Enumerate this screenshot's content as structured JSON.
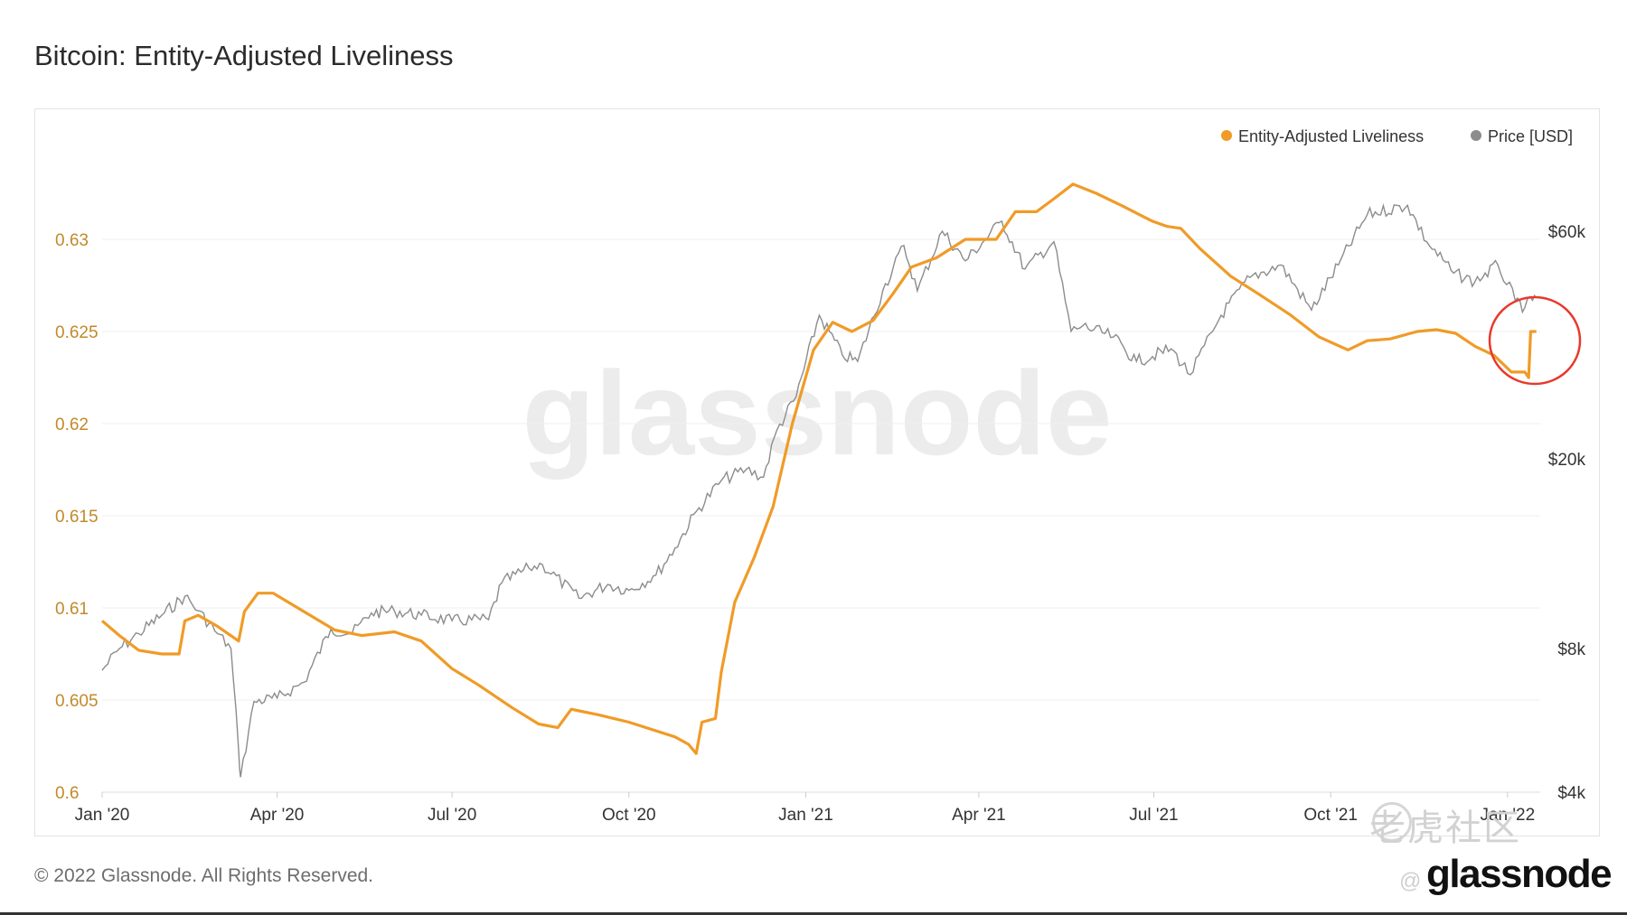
{
  "title": "Bitcoin: Entity-Adjusted Liveliness",
  "footer": "© 2022 Glassnode. All Rights Reserved.",
  "brand": "glassnode",
  "watermark_text": "glassnode",
  "overlay": {
    "site": "老虎社区",
    "handle": "@"
  },
  "colors": {
    "liveliness": "#f09b27",
    "price": "#8c8c8c",
    "highlight": "#e8392b",
    "grid": "#efefef",
    "left_axis_text": "#c2892a"
  },
  "chart_data": {
    "type": "line",
    "x_range": [
      "2020-01-01",
      "2022-01-18"
    ],
    "x_ticks": [
      {
        "date": "2020-01-01",
        "label": "Jan '20"
      },
      {
        "date": "2020-04-01",
        "label": "Apr '20"
      },
      {
        "date": "2020-07-01",
        "label": "Jul '20"
      },
      {
        "date": "2020-10-01",
        "label": "Oct '20"
      },
      {
        "date": "2021-01-01",
        "label": "Jan '21"
      },
      {
        "date": "2021-04-01",
        "label": "Apr '21"
      },
      {
        "date": "2021-07-01",
        "label": "Jul '21"
      },
      {
        "date": "2021-10-01",
        "label": "Oct '21"
      },
      {
        "date": "2022-01-01",
        "label": "Jan '22"
      }
    ],
    "y_left": {
      "ylim": [
        0.6,
        0.635
      ],
      "ticks": [
        0.6,
        0.605,
        0.61,
        0.615,
        0.62,
        0.625,
        0.63
      ],
      "tick_labels": [
        "0.6",
        "0.605",
        "0.61",
        "0.615",
        "0.62",
        "0.625",
        "0.63"
      ]
    },
    "y_right": {
      "scale": "log",
      "ylim": [
        4000,
        90000
      ],
      "ticks": [
        4000,
        8000,
        20000,
        60000
      ],
      "tick_labels": [
        "$4k",
        "$8k",
        "$20k",
        "$60k"
      ]
    },
    "legend_position": "top-right",
    "grid": true,
    "annotation": "red circle around the Jan '22 spike",
    "series": [
      {
        "name": "Entity-Adjusted Liveliness",
        "axis": "left",
        "points": [
          [
            "2020-01-01",
            0.6093
          ],
          [
            "2020-01-10",
            0.6085
          ],
          [
            "2020-01-20",
            0.6077
          ],
          [
            "2020-02-01",
            0.6075
          ],
          [
            "2020-02-10",
            0.6075
          ],
          [
            "2020-02-13",
            0.6093
          ],
          [
            "2020-02-20",
            0.6096
          ],
          [
            "2020-03-01",
            0.609
          ],
          [
            "2020-03-12",
            0.6082
          ],
          [
            "2020-03-15",
            0.6098
          ],
          [
            "2020-03-22",
            0.6108
          ],
          [
            "2020-03-30",
            0.6108
          ],
          [
            "2020-04-15",
            0.6098
          ],
          [
            "2020-05-01",
            0.6088
          ],
          [
            "2020-05-15",
            0.6085
          ],
          [
            "2020-06-01",
            0.6087
          ],
          [
            "2020-06-15",
            0.6082
          ],
          [
            "2020-07-01",
            0.6067
          ],
          [
            "2020-07-15",
            0.6058
          ],
          [
            "2020-08-01",
            0.6046
          ],
          [
            "2020-08-15",
            0.6037
          ],
          [
            "2020-08-25",
            0.6035
          ],
          [
            "2020-09-01",
            0.6045
          ],
          [
            "2020-09-15",
            0.6042
          ],
          [
            "2020-10-01",
            0.6038
          ],
          [
            "2020-10-10",
            0.6035
          ],
          [
            "2020-10-25",
            0.603
          ],
          [
            "2020-11-01",
            0.6026
          ],
          [
            "2020-11-05",
            0.6021
          ],
          [
            "2020-11-08",
            0.6038
          ],
          [
            "2020-11-15",
            0.604
          ],
          [
            "2020-11-18",
            0.6065
          ],
          [
            "2020-11-25",
            0.6103
          ],
          [
            "2020-12-05",
            0.6127
          ],
          [
            "2020-12-15",
            0.6155
          ],
          [
            "2020-12-25",
            0.62
          ],
          [
            "2021-01-05",
            0.624
          ],
          [
            "2021-01-15",
            0.6255
          ],
          [
            "2021-01-25",
            0.625
          ],
          [
            "2021-02-05",
            0.6256
          ],
          [
            "2021-02-15",
            0.627
          ],
          [
            "2021-02-25",
            0.6285
          ],
          [
            "2021-03-10",
            0.629
          ],
          [
            "2021-03-25",
            0.63
          ],
          [
            "2021-04-10",
            0.63
          ],
          [
            "2021-04-20",
            0.6315
          ],
          [
            "2021-05-01",
            0.6315
          ],
          [
            "2021-05-10",
            0.6322
          ],
          [
            "2021-05-20",
            0.633
          ],
          [
            "2021-06-01",
            0.6325
          ],
          [
            "2021-06-15",
            0.6318
          ],
          [
            "2021-06-30",
            0.631
          ],
          [
            "2021-07-08",
            0.6307
          ],
          [
            "2021-07-15",
            0.6306
          ],
          [
            "2021-07-25",
            0.6295
          ],
          [
            "2021-08-10",
            0.628
          ],
          [
            "2021-08-25",
            0.627
          ],
          [
            "2021-09-10",
            0.6259
          ],
          [
            "2021-09-25",
            0.6247
          ],
          [
            "2021-10-10",
            0.624
          ],
          [
            "2021-10-20",
            0.6245
          ],
          [
            "2021-11-01",
            0.6246
          ],
          [
            "2021-11-15",
            0.625
          ],
          [
            "2021-11-25",
            0.6251
          ],
          [
            "2021-12-05",
            0.6249
          ],
          [
            "2021-12-15",
            0.6242
          ],
          [
            "2021-12-25",
            0.6237
          ],
          [
            "2022-01-03",
            0.6228
          ],
          [
            "2022-01-10",
            0.6228
          ],
          [
            "2022-01-12",
            0.6225
          ],
          [
            "2022-01-13",
            0.625
          ],
          [
            "2022-01-16",
            0.625
          ]
        ]
      },
      {
        "name": "Price [USD]",
        "axis": "right",
        "points": [
          [
            "2020-01-01",
            7200
          ],
          [
            "2020-01-10",
            8000
          ],
          [
            "2020-01-20",
            8600
          ],
          [
            "2020-02-01",
            9400
          ],
          [
            "2020-02-13",
            10300
          ],
          [
            "2020-02-20",
            9600
          ],
          [
            "2020-03-01",
            8600
          ],
          [
            "2020-03-08",
            8000
          ],
          [
            "2020-03-12",
            4900
          ],
          [
            "2020-03-13",
            4300
          ],
          [
            "2020-03-20",
            6200
          ],
          [
            "2020-04-01",
            6300
          ],
          [
            "2020-04-15",
            6800
          ],
          [
            "2020-04-29",
            8800
          ],
          [
            "2020-05-10",
            8600
          ],
          [
            "2020-05-20",
            9500
          ],
          [
            "2020-06-01",
            9600
          ],
          [
            "2020-06-15",
            9400
          ],
          [
            "2020-07-01",
            9150
          ],
          [
            "2020-07-20",
            9200
          ],
          [
            "2020-07-27",
            11000
          ],
          [
            "2020-08-10",
            11800
          ],
          [
            "2020-08-17",
            12000
          ],
          [
            "2020-09-05",
            10200
          ],
          [
            "2020-09-20",
            10900
          ],
          [
            "2020-10-01",
            10600
          ],
          [
            "2020-10-15",
            11400
          ],
          [
            "2020-10-25",
            13000
          ],
          [
            "2020-11-05",
            15500
          ],
          [
            "2020-11-18",
            18000
          ],
          [
            "2020-12-01",
            19000
          ],
          [
            "2020-12-10",
            18300
          ],
          [
            "2020-12-17",
            23000
          ],
          [
            "2020-12-27",
            27000
          ],
          [
            "2021-01-08",
            40000
          ],
          [
            "2021-01-20",
            33000
          ],
          [
            "2021-01-28",
            32000
          ],
          [
            "2021-02-10",
            45000
          ],
          [
            "2021-02-21",
            56000
          ],
          [
            "2021-02-28",
            45000
          ],
          [
            "2021-03-13",
            60000
          ],
          [
            "2021-03-25",
            52000
          ],
          [
            "2021-04-13",
            63000
          ],
          [
            "2021-04-25",
            50000
          ],
          [
            "2021-05-10",
            57000
          ],
          [
            "2021-05-19",
            37000
          ],
          [
            "2021-05-25",
            38000
          ],
          [
            "2021-06-10",
            36000
          ],
          [
            "2021-06-22",
            32000
          ],
          [
            "2021-07-10",
            34000
          ],
          [
            "2021-07-20",
            30000
          ],
          [
            "2021-08-05",
            40000
          ],
          [
            "2021-08-20",
            48000
          ],
          [
            "2021-09-05",
            51000
          ],
          [
            "2021-09-21",
            41000
          ],
          [
            "2021-10-05",
            51000
          ],
          [
            "2021-10-20",
            65000
          ],
          [
            "2021-11-10",
            68000
          ],
          [
            "2021-11-20",
            57000
          ],
          [
            "2021-12-04",
            49000
          ],
          [
            "2021-12-15",
            47000
          ],
          [
            "2021-12-27",
            51000
          ],
          [
            "2022-01-05",
            43000
          ],
          [
            "2022-01-10",
            41500
          ],
          [
            "2022-01-14",
            43000
          ],
          [
            "2022-01-16",
            43500
          ]
        ]
      }
    ]
  }
}
